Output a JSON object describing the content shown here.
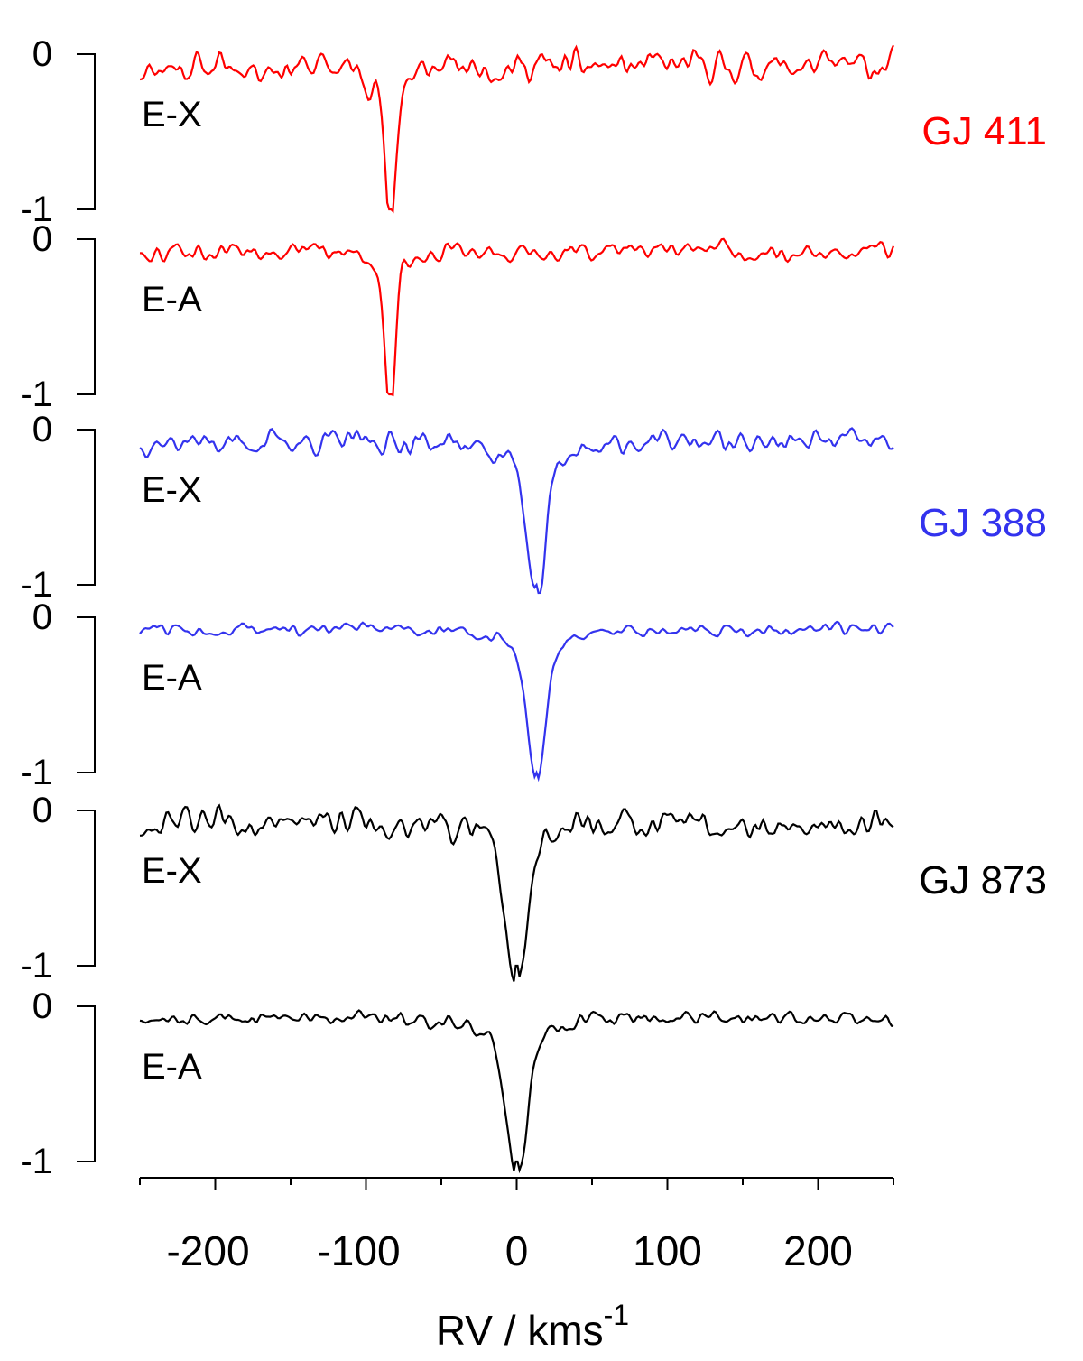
{
  "chart_data": {
    "type": "line",
    "x_axis": {
      "label": "RV / kms",
      "label_superscript": "-1",
      "range": [
        -250,
        250
      ],
      "ticks": [
        -200,
        -100,
        0,
        100,
        200
      ],
      "tick_labels": [
        "-200",
        "-100",
        "0",
        "100",
        "200"
      ]
    },
    "y_axis": {
      "range": [
        -1,
        0
      ],
      "tick_labels": [
        "0",
        "-1"
      ]
    },
    "grid": false,
    "stars": [
      {
        "name": "GJ 411",
        "color": "#ff0000",
        "line_center": -84,
        "line_width": 3.5,
        "noise_amplitude": 0.09,
        "seed": 11
      },
      {
        "name": "GJ 388",
        "color": "#3333ee",
        "line_center": 13,
        "line_width": 6,
        "noise_amplitude": 0.06,
        "seed": 23
      },
      {
        "name": "GJ 873",
        "color": "#000000",
        "line_center": 0,
        "line_width": 7,
        "noise_amplitude": 0.07,
        "seed": 37
      }
    ],
    "panels": [
      {
        "star": "GJ 411",
        "label": "E-X",
        "y_range": [
          -1,
          0
        ]
      },
      {
        "star": "GJ 411",
        "label": "E-A",
        "y_range": [
          -1,
          0
        ]
      },
      {
        "star": "GJ 388",
        "label": "E-X",
        "y_range": [
          -1,
          0
        ]
      },
      {
        "star": "GJ 388",
        "label": "E-A",
        "y_range": [
          -1,
          0
        ]
      },
      {
        "star": "GJ 873",
        "label": "E-X",
        "y_range": [
          -1,
          0
        ]
      },
      {
        "star": "GJ 873",
        "label": "E-A",
        "y_range": [
          -1,
          0
        ]
      }
    ]
  }
}
